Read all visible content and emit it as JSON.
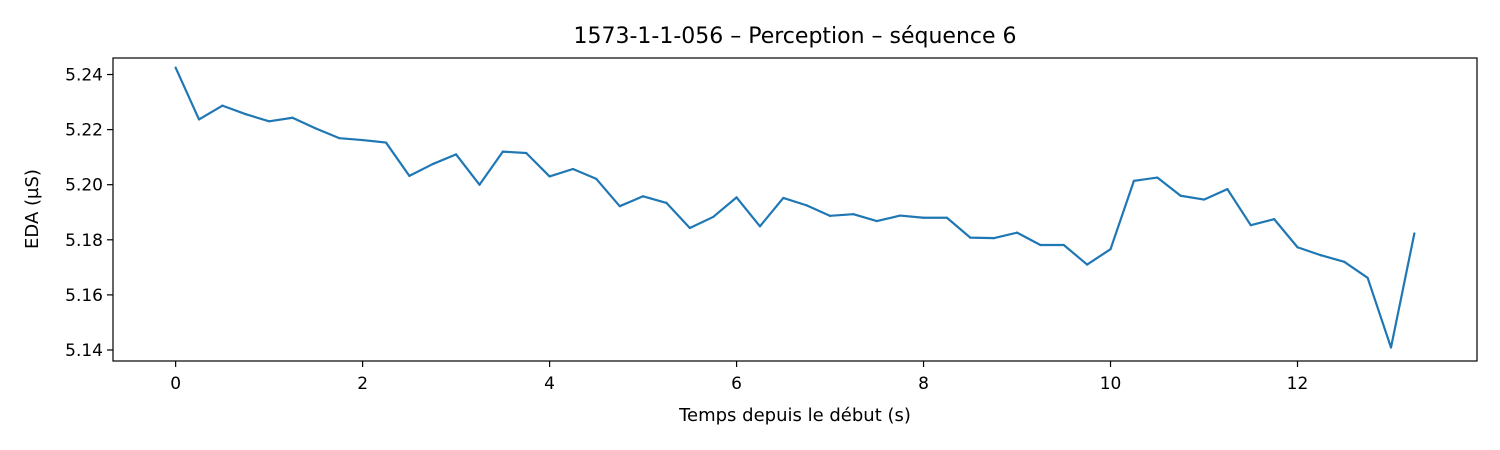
{
  "chart_data": {
    "type": "line",
    "title": "1573-1-1-056 – Perception – séquence 6",
    "xlabel": "Temps depuis le début (s)",
    "ylabel": "EDA (µS)",
    "xlim": [
      -0.67,
      13.92
    ],
    "ylim": [
      5.136,
      5.246
    ],
    "xticks": [
      0,
      2,
      4,
      6,
      8,
      10,
      12
    ],
    "yticks": [
      5.14,
      5.16,
      5.18,
      5.2,
      5.22,
      5.24
    ],
    "ytick_labels": [
      "5.14",
      "5.16",
      "5.18",
      "5.20",
      "5.22",
      "5.24"
    ],
    "grid": false,
    "series": [
      {
        "color": "#1f77b4",
        "x": [
          0,
          0.25,
          0.5,
          0.75,
          1.0,
          1.25,
          1.5,
          1.75,
          2.0,
          2.25,
          2.5,
          2.75,
          3.0,
          3.25,
          3.5,
          3.75,
          4.0,
          4.25,
          4.5,
          4.75,
          5.0,
          5.25,
          5.5,
          5.75,
          6.0,
          6.25,
          6.5,
          6.75,
          7.0,
          7.25,
          7.5,
          7.75,
          8.0,
          8.25,
          8.5,
          8.75,
          9.0,
          9.25,
          9.5,
          9.75,
          10.0,
          10.25,
          10.5,
          10.75,
          11.0,
          11.25,
          11.5,
          11.75,
          12.0,
          12.25,
          12.5,
          12.75,
          13.0,
          13.25
        ],
        "y": [
          5.2425,
          5.2237,
          5.2287,
          5.2256,
          5.223,
          5.2243,
          5.2204,
          5.2169,
          5.2162,
          5.2153,
          5.2032,
          5.2075,
          5.211,
          5.2,
          5.212,
          5.2115,
          5.203,
          5.2057,
          5.2021,
          5.1922,
          5.1958,
          5.1934,
          5.1843,
          5.1883,
          5.1954,
          5.1849,
          5.1952,
          5.1925,
          5.1887,
          5.1893,
          5.1868,
          5.1888,
          5.188,
          5.188,
          5.1808,
          5.1806,
          5.1826,
          5.1781,
          5.1781,
          5.171,
          5.1766,
          5.2014,
          5.2026,
          5.196,
          5.1946,
          5.1984,
          5.1853,
          5.1875,
          5.1773,
          5.1744,
          5.172,
          5.1662,
          5.1409,
          5.1823
        ]
      }
    ]
  }
}
